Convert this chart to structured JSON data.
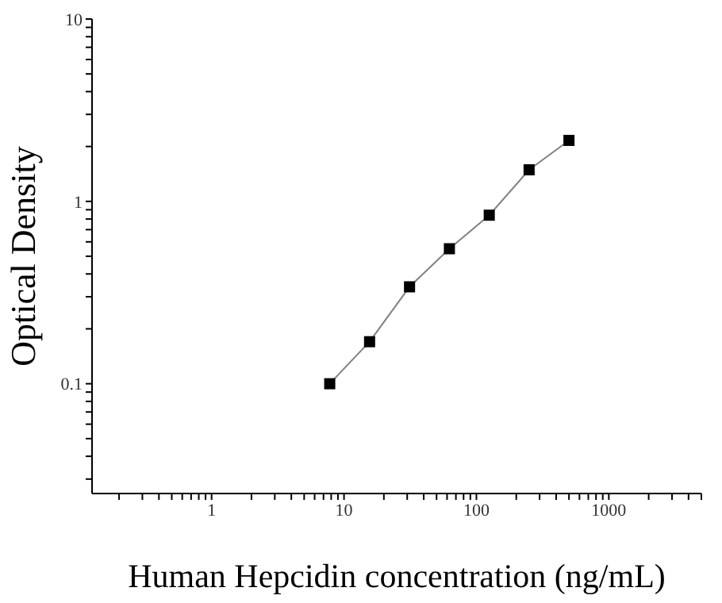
{
  "chart_data": {
    "type": "scatter",
    "xlabel": "Human Hepcidin concentration (ng/mL)",
    "ylabel": "Optical Density",
    "log": "xy",
    "grid": false,
    "series": [
      {
        "type": "line",
        "color": "#808080",
        "marker": "none",
        "line_style": "solid",
        "x": [
          7.8,
          15.6,
          31.25,
          62.5,
          125,
          250,
          500
        ],
        "values": [
          0.1,
          0.17,
          0.34,
          0.55,
          0.84,
          1.49,
          2.16
        ]
      },
      {
        "color": "#000000",
        "marker": "square",
        "x": [
          7.8,
          15.6,
          31.25,
          62.5,
          125,
          250,
          500
        ],
        "values": [
          0.1,
          0.17,
          0.34,
          0.55,
          0.84,
          1.49,
          2.16
        ]
      }
    ],
    "xlim": [
      0.125,
      5000
    ],
    "xticks": [
      {
        "value": 0.2,
        "label": null
      },
      {
        "value": 0.3,
        "label": null
      },
      {
        "value": 0.4,
        "label": null
      },
      {
        "value": 0.5,
        "label": null
      },
      {
        "value": 0.6,
        "label": null
      },
      {
        "value": 0.7,
        "label": null
      },
      {
        "value": 0.8,
        "label": null
      },
      {
        "value": 0.9,
        "label": null
      },
      1,
      {
        "value": 2,
        "label": null
      },
      {
        "value": 3,
        "label": null
      },
      {
        "value": 4,
        "label": null
      },
      {
        "value": 5,
        "label": null
      },
      {
        "value": 6,
        "label": null
      },
      {
        "value": 7,
        "label": null
      },
      {
        "value": 8,
        "label": null
      },
      {
        "value": 9,
        "label": null
      },
      10,
      {
        "value": 20,
        "label": null
      },
      {
        "value": 30,
        "label": null
      },
      {
        "value": 40,
        "label": null
      },
      {
        "value": 50,
        "label": null
      },
      {
        "value": 60,
        "label": null
      },
      {
        "value": 70,
        "label": null
      },
      {
        "value": 80,
        "label": null
      },
      {
        "value": 90,
        "label": null
      },
      100,
      {
        "value": 200,
        "label": null
      },
      {
        "value": 300,
        "label": null
      },
      {
        "value": 400,
        "label": null
      },
      {
        "value": 500,
        "label": null
      },
      {
        "value": 600,
        "label": null
      },
      {
        "value": 700,
        "label": null
      },
      {
        "value": 800,
        "label": null
      },
      {
        "value": 900,
        "label": null
      },
      1000,
      {
        "value": 2000,
        "label": null
      },
      {
        "value": 3000,
        "label": null
      },
      {
        "value": 4000,
        "label": null
      },
      {
        "value": 5000,
        "label": null
      }
    ],
    "ylim": [
      0.025,
      10
    ],
    "yticks": [
      {
        "value": 0.03,
        "label": null
      },
      {
        "value": 0.04,
        "label": null
      },
      {
        "value": 0.05,
        "label": null
      },
      {
        "value": 0.06,
        "label": null
      },
      {
        "value": 0.07,
        "label": null
      },
      {
        "value": 0.08,
        "label": null
      },
      {
        "value": 0.09,
        "label": null
      },
      {
        "value": 0.1,
        "label": "0.1"
      },
      {
        "value": 0.2,
        "label": null
      },
      {
        "value": 0.3,
        "label": null
      },
      {
        "value": 0.4,
        "label": null
      },
      {
        "value": 0.5,
        "label": null
      },
      {
        "value": 0.6,
        "label": null
      },
      {
        "value": 0.7,
        "label": null
      },
      {
        "value": 0.8,
        "label": null
      },
      {
        "value": 0.9,
        "label": null
      },
      1,
      {
        "value": 2,
        "label": null
      },
      {
        "value": 3,
        "label": null
      },
      {
        "value": 4,
        "label": null
      },
      {
        "value": 5,
        "label": null
      },
      {
        "value": 6,
        "label": null
      },
      {
        "value": 7,
        "label": null
      },
      {
        "value": 8,
        "label": null
      },
      {
        "value": 9,
        "label": null
      },
      10
    ]
  }
}
